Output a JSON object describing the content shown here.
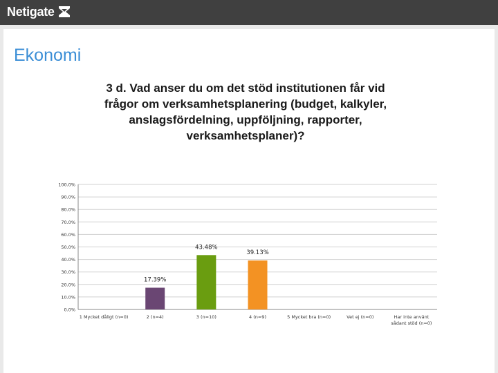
{
  "header": {
    "brand": "Netigate"
  },
  "slide": {
    "section_title": "Ekonomi"
  },
  "colors": {
    "topbar": "#404040",
    "section_title": "#3b8ed6",
    "grid": "#d0d0d0"
  },
  "chart_data": {
    "type": "bar",
    "title": "3 d. Vad anser du om det stöd institutionen får vid frågor om verksamhetsplanering (budget, kalkyler, anslagsfördelning, uppföljning, rapporter, verksamhetsplaner)?",
    "categories": [
      "1 Mycket dåligt (n=0)",
      "2 (n=4)",
      "3 (n=10)",
      "4 (n=9)",
      "5 Mycket bra (n=0)",
      "Vet ej (n=0)",
      "Har inte använt sådant stöd (n=0)"
    ],
    "category_lines": [
      [
        "1 Mycket dåligt (n=0)"
      ],
      [
        "2 (n=4)"
      ],
      [
        "3 (n=10)"
      ],
      [
        "4 (n=9)"
      ],
      [
        "5 Mycket bra (n=0)"
      ],
      [
        "Vet ej (n=0)"
      ],
      [
        "Har inte använt",
        "sådant stöd (n=0)"
      ]
    ],
    "values": [
      0,
      17.39,
      43.48,
      39.13,
      0,
      0,
      0
    ],
    "data_labels": [
      "",
      "17.39%",
      "43.48%",
      "39.13%",
      "",
      "",
      ""
    ],
    "bar_colors": [
      "#5b3a7a",
      "#6a4673",
      "#6a9d10",
      "#f39223",
      "#999999",
      "#999999",
      "#999999"
    ],
    "y_ticks": [
      "0.0%",
      "10.0%",
      "20.0%",
      "30.0%",
      "40.0%",
      "50.0%",
      "60.0%",
      "70.0%",
      "80.0%",
      "90.0%",
      "100.0%"
    ],
    "ylim": [
      0,
      100
    ],
    "xlabel": "",
    "ylabel": "",
    "grid": true,
    "legend": "none"
  }
}
